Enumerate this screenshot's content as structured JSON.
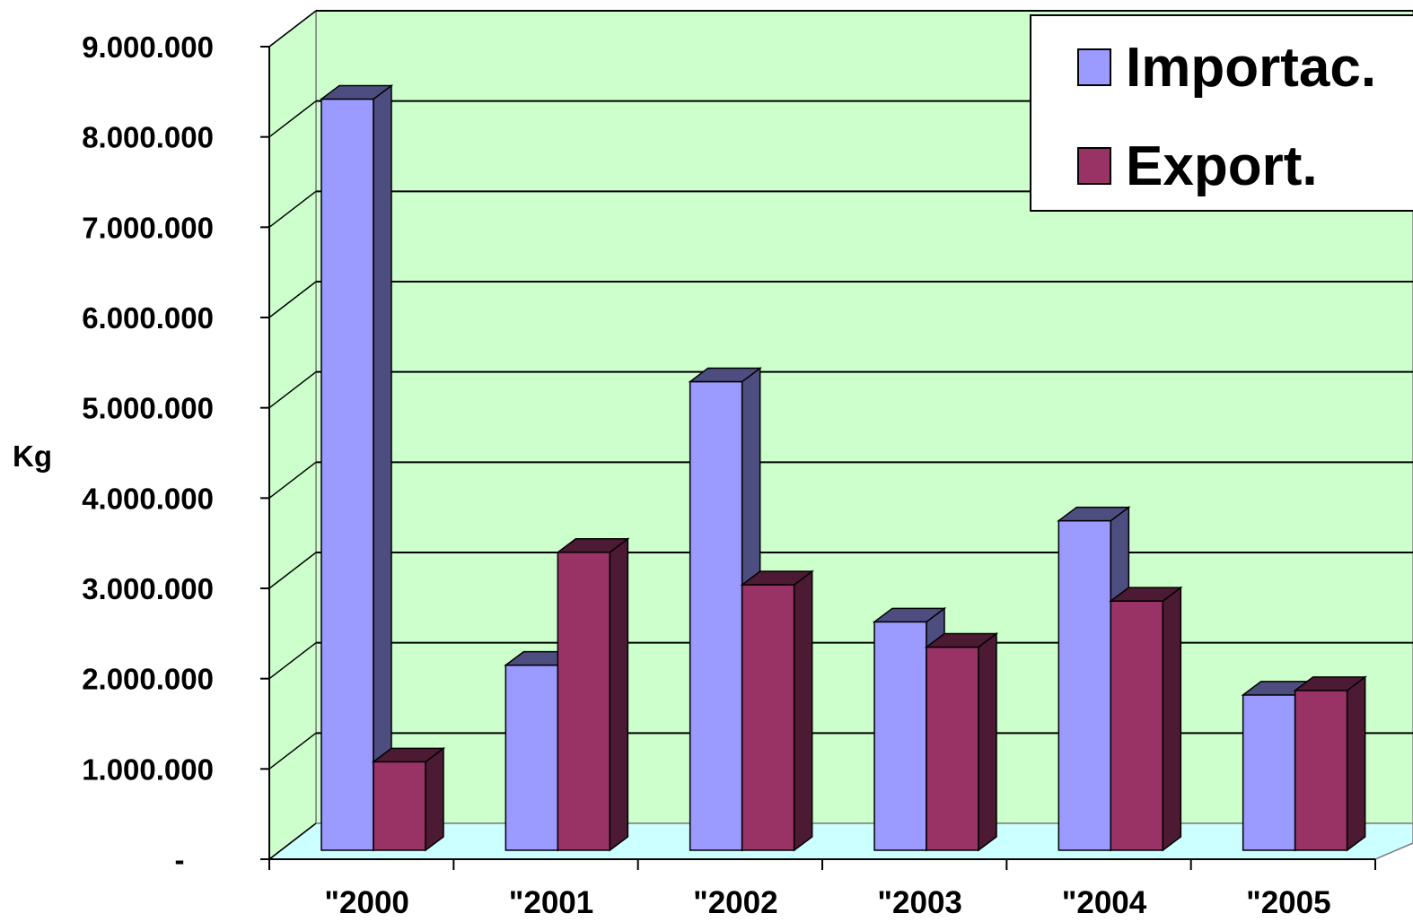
{
  "chart_data": {
    "type": "bar",
    "categories": [
      "\"2000",
      "\"2001",
      "\"2002",
      "\"2003",
      "\"2004",
      "\"2005"
    ],
    "series": [
      {
        "name": "Importac.",
        "values": [
          8320000,
          2050000,
          5190000,
          2530000,
          3650000,
          1720000
        ],
        "color": "#9a9aff",
        "side_color": "#4d4d80"
      },
      {
        "name": "Export.",
        "values": [
          980000,
          3300000,
          2940000,
          2250000,
          2760000,
          1770000
        ],
        "color": "#993366",
        "side_color": "#4d1a33"
      }
    ],
    "ylabel": "Kg",
    "ylim": [
      0,
      9000000
    ],
    "yticks": [
      0,
      1000000,
      2000000,
      3000000,
      4000000,
      5000000,
      6000000,
      7000000,
      8000000,
      9000000
    ],
    "ytick_labels": [
      "-",
      "1.000.000",
      "2.000.000",
      "3.000.000",
      "4.000.000",
      "5.000.000",
      "6.000.000",
      "7.000.000",
      "8.000.000",
      "9.000.000"
    ],
    "grid": true,
    "legend_position": "top-right",
    "style": "3d-clustered-column",
    "wall_color": "#ccffcc",
    "floor_color": "#ccffff"
  }
}
